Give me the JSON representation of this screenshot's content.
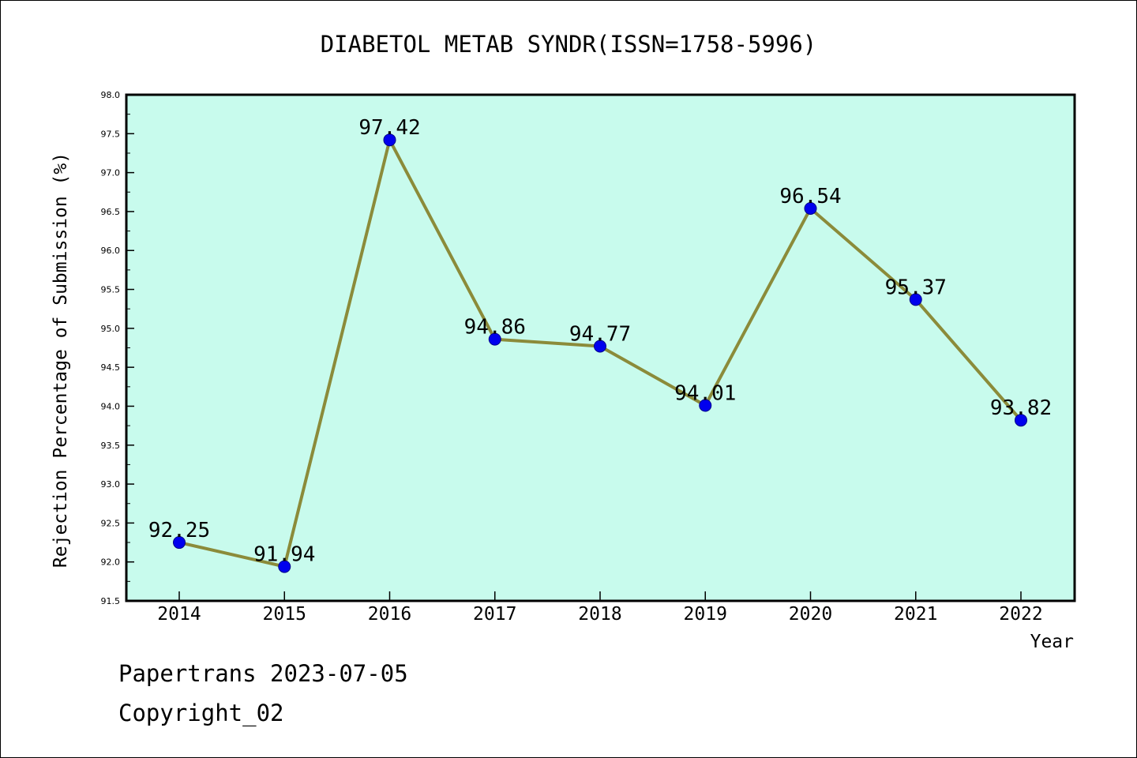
{
  "chart_data": {
    "type": "line",
    "title": "DIABETOL METAB SYNDR(ISSN=1758-5996)",
    "xlabel": "Year",
    "ylabel": "Rejection Percentage of Submission (%)",
    "categories": [
      "2014",
      "2015",
      "2016",
      "2017",
      "2018",
      "2019",
      "2020",
      "2021",
      "2022"
    ],
    "series": [
      {
        "values": [
          92.25,
          91.94,
          97.42,
          94.86,
          94.77,
          94.01,
          96.54,
          95.37,
          93.82
        ],
        "labels": [
          "92.25",
          "91.94",
          "97.42",
          "94.86",
          "94.77",
          "94.01",
          "96.54",
          "95.37",
          "93.82"
        ]
      }
    ],
    "ylim": [
      91.5,
      98.0
    ],
    "yticks": [
      "91.5",
      "92.0",
      "92.5",
      "93.0",
      "93.5",
      "94.0",
      "94.5",
      "95.0",
      "95.5",
      "96.0",
      "96.5",
      "97.0",
      "97.5",
      "98.0"
    ],
    "grid": false,
    "colors": {
      "plot_background": "#c8fbed",
      "line": "#8b8b3a",
      "marker": "#0000ee"
    }
  },
  "footer": {
    "line1": "Papertrans 2023-07-05",
    "line2": "Copyright_02"
  }
}
